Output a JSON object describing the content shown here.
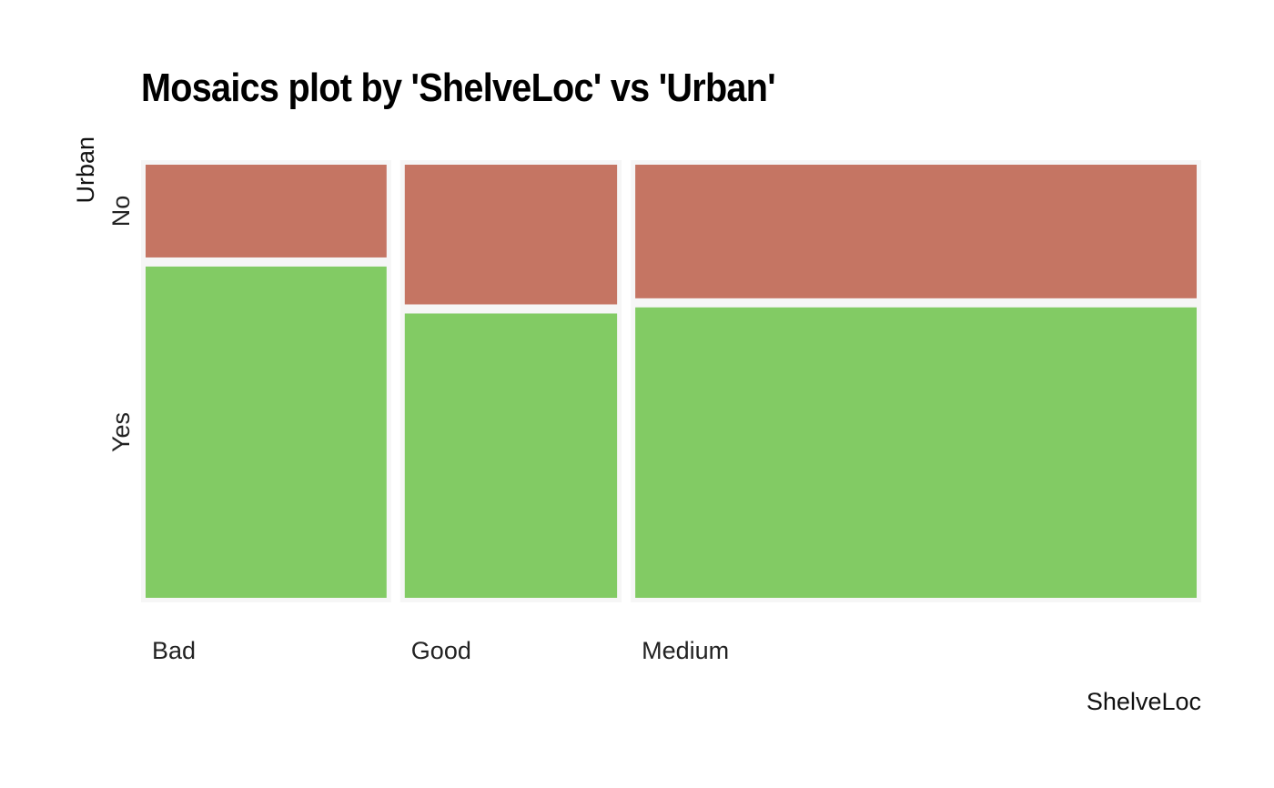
{
  "chart_data": {
    "type": "mosaic",
    "title": "Mosaics plot by 'ShelveLoc' vs 'Urban'",
    "xlabel": "ShelveLoc",
    "ylabel": "Urban",
    "x_categories": [
      "Bad",
      "Good",
      "Medium"
    ],
    "y_categories": [
      "No",
      "Yes"
    ],
    "counts": [
      {
        "x": "Bad",
        "No": 21,
        "Yes": 75
      },
      {
        "x": "Good",
        "No": 28,
        "Yes": 57
      },
      {
        "x": "Medium",
        "No": 69,
        "Yes": 150
      }
    ],
    "colors": {
      "No": "#c57563",
      "Yes": "#82cb64"
    },
    "grid": false,
    "legend": "none"
  }
}
